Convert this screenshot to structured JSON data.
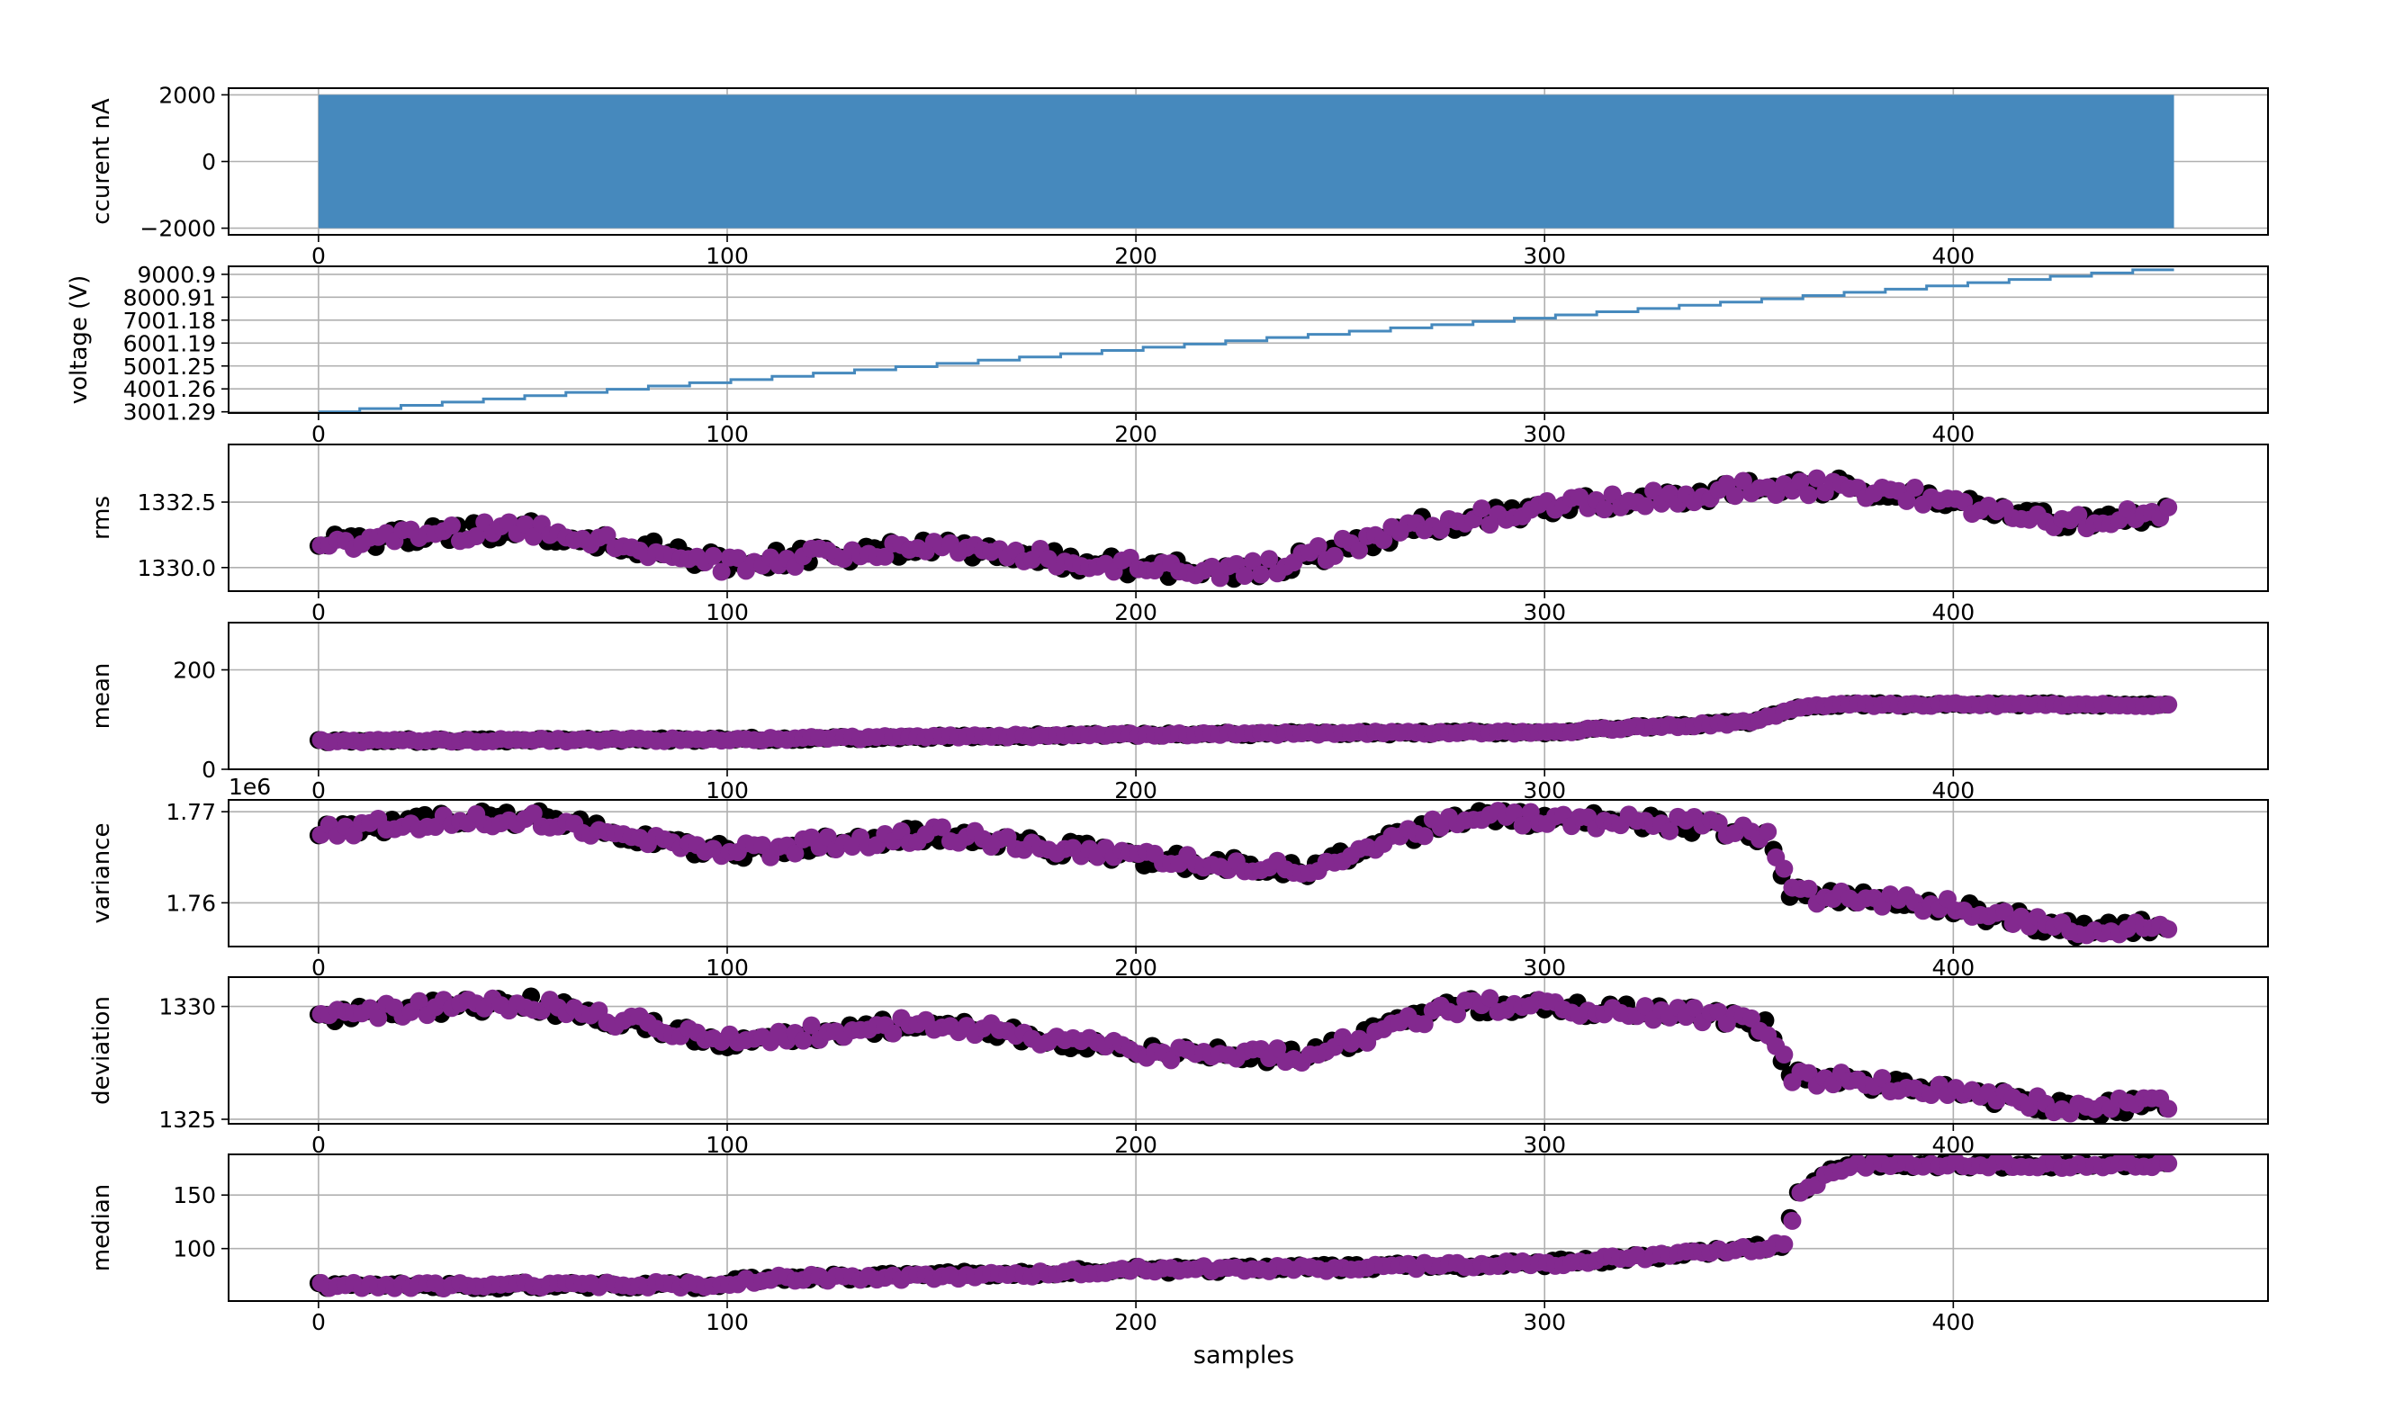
{
  "figure": {
    "xlabel": "samples",
    "x_ticks": [
      0,
      100,
      200,
      300,
      400
    ]
  },
  "chart_data": [
    {
      "type": "area",
      "ylabel": "ccurent nA",
      "xlim": [
        -22,
        477
      ],
      "ylim": [
        -2200,
        2200
      ],
      "y_ticks": [
        2000,
        0,
        -2000
      ],
      "y_tick_labels": [
        "2000",
        "0",
        "−2000"
      ],
      "grid": true,
      "color": "#4689bd",
      "description_values": {
        "x_range": [
          0,
          454
        ],
        "y_min": -2000,
        "y_max": 2000
      }
    },
    {
      "type": "line",
      "ylabel": "voltage (V)",
      "xlim": [
        -22,
        477
      ],
      "ylim": [
        2950,
        9350
      ],
      "y_ticks": [
        3001.29,
        4001.26,
        5001.25,
        6001.19,
        7001.18,
        8000.91,
        9000.9
      ],
      "y_tick_labels": [
        "3001.29",
        "4001.26",
        "5001.25",
        "6001.19",
        "7001.18",
        "8000.91",
        "9000.9"
      ],
      "grid": true,
      "color": "#4689bd",
      "x": [
        0,
        454
      ],
      "y": [
        3001.29,
        9200
      ]
    },
    {
      "type": "scatter",
      "ylabel": "rms",
      "xlim": [
        -22,
        477
      ],
      "ylim": [
        1329.1,
        1334.7
      ],
      "y_ticks": [
        1330.0,
        1332.5
      ],
      "y_tick_labels": [
        "1330.0",
        "1332.5"
      ],
      "grid": true,
      "x_range": [
        0,
        452
      ],
      "series": [
        {
          "color": "#000000",
          "keypoints": [
            [
              0,
              1330.9
            ],
            [
              50,
              1331.5
            ],
            [
              100,
              1330.2
            ],
            [
              150,
              1330.8
            ],
            [
              200,
              1330.0
            ],
            [
              230,
              1329.9
            ],
            [
              270,
              1331.6
            ],
            [
              300,
              1332.3
            ],
            [
              350,
              1333.0
            ],
            [
              370,
              1333.1
            ],
            [
              400,
              1332.5
            ],
            [
              430,
              1331.7
            ],
            [
              452,
              1332.1
            ]
          ],
          "noise": 0.35
        },
        {
          "color": "#83298f",
          "keypoints": [
            [
              0,
              1330.9
            ],
            [
              50,
              1331.5
            ],
            [
              100,
              1330.1
            ],
            [
              150,
              1330.8
            ],
            [
              200,
              1330.0
            ],
            [
              230,
              1329.9
            ],
            [
              270,
              1331.6
            ],
            [
              300,
              1332.3
            ],
            [
              350,
              1333.0
            ],
            [
              370,
              1333.1
            ],
            [
              400,
              1332.5
            ],
            [
              430,
              1331.7
            ],
            [
              452,
              1332.1
            ]
          ],
          "noise": 0.35
        }
      ]
    },
    {
      "type": "scatter",
      "ylabel": "mean",
      "xlim": [
        -22,
        477
      ],
      "ylim": [
        0,
        295
      ],
      "y_ticks": [
        0,
        200
      ],
      "y_tick_labels": [
        "0",
        "200"
      ],
      "grid": true,
      "x_range": [
        0,
        452
      ],
      "series": [
        {
          "color": "#000000",
          "keypoints": [
            [
              0,
              57
            ],
            [
              100,
              60
            ],
            [
              200,
              70
            ],
            [
              300,
              75
            ],
            [
              350,
              95
            ],
            [
              360,
              120
            ],
            [
              370,
              130
            ],
            [
              452,
              130
            ]
          ],
          "noise": 3
        },
        {
          "color": "#83298f",
          "keypoints": [
            [
              0,
              57
            ],
            [
              100,
              60
            ],
            [
              200,
              70
            ],
            [
              300,
              75
            ],
            [
              350,
              95
            ],
            [
              360,
              120
            ],
            [
              370,
              130
            ],
            [
              452,
              130
            ]
          ],
          "noise": 3
        }
      ]
    },
    {
      "type": "scatter",
      "ylabel": "variance",
      "multiplier": "1e6",
      "xlim": [
        -22,
        477
      ],
      "ylim": [
        1.7552,
        1.7713
      ],
      "y_ticks": [
        1.76,
        1.77
      ],
      "y_tick_labels": [
        "1.76",
        "1.77"
      ],
      "grid": true,
      "x_range": [
        0,
        452
      ],
      "series": [
        {
          "color": "#000000",
          "keypoints": [
            [
              0,
              1.768
            ],
            [
              50,
              1.7695
            ],
            [
              100,
              1.7655
            ],
            [
              150,
              1.7675
            ],
            [
              200,
              1.765
            ],
            [
              240,
              1.7635
            ],
            [
              280,
              1.7695
            ],
            [
              340,
              1.7685
            ],
            [
              355,
              1.767
            ],
            [
              360,
              1.761
            ],
            [
              400,
              1.7595
            ],
            [
              430,
              1.757
            ],
            [
              452,
              1.7575
            ]
          ],
          "noise": 0.0009
        },
        {
          "color": "#83298f",
          "keypoints": [
            [
              0,
              1.768
            ],
            [
              50,
              1.7695
            ],
            [
              100,
              1.7655
            ],
            [
              150,
              1.7675
            ],
            [
              200,
              1.765
            ],
            [
              240,
              1.7635
            ],
            [
              280,
              1.7695
            ],
            [
              340,
              1.7685
            ],
            [
              355,
              1.767
            ],
            [
              360,
              1.761
            ],
            [
              400,
              1.7595
            ],
            [
              430,
              1.757
            ],
            [
              452,
              1.7575
            ]
          ],
          "noise": 0.0009
        }
      ]
    },
    {
      "type": "scatter",
      "ylabel": "deviation",
      "xlim": [
        -22,
        477
      ],
      "ylim": [
        1324.8,
        1331.3
      ],
      "y_ticks": [
        1325,
        1330
      ],
      "y_tick_labels": [
        "1325",
        "1330"
      ],
      "grid": true,
      "x_range": [
        0,
        452
      ],
      "series": [
        {
          "color": "#000000",
          "keypoints": [
            [
              0,
              1329.6
            ],
            [
              50,
              1330.2
            ],
            [
              100,
              1328.5
            ],
            [
              150,
              1329.3
            ],
            [
              200,
              1328.0
            ],
            [
              240,
              1327.8
            ],
            [
              280,
              1330.1
            ],
            [
              340,
              1329.6
            ],
            [
              355,
              1329.0
            ],
            [
              360,
              1326.9
            ],
            [
              400,
              1326.3
            ],
            [
              430,
              1325.4
            ],
            [
              452,
              1325.8
            ]
          ],
          "noise": 0.35
        },
        {
          "color": "#83298f",
          "keypoints": [
            [
              0,
              1329.6
            ],
            [
              50,
              1330.2
            ],
            [
              100,
              1328.5
            ],
            [
              150,
              1329.3
            ],
            [
              200,
              1328.0
            ],
            [
              240,
              1327.8
            ],
            [
              280,
              1330.1
            ],
            [
              340,
              1329.6
            ],
            [
              355,
              1329.0
            ],
            [
              360,
              1326.9
            ],
            [
              400,
              1326.3
            ],
            [
              430,
              1325.4
            ],
            [
              452,
              1325.8
            ]
          ],
          "noise": 0.35
        }
      ]
    },
    {
      "type": "scatter",
      "ylabel": "median",
      "xlim": [
        -22,
        477
      ],
      "ylim": [
        51,
        188
      ],
      "y_ticks": [
        100,
        150
      ],
      "y_tick_labels": [
        "100",
        "150"
      ],
      "grid": true,
      "x_range": [
        0,
        452
      ],
      "series": [
        {
          "color": "#000000",
          "keypoints": [
            [
              0,
              65
            ],
            [
              95,
              66
            ],
            [
              110,
              72
            ],
            [
              150,
              76
            ],
            [
              200,
              80
            ],
            [
              250,
              82
            ],
            [
              300,
              86
            ],
            [
              340,
              96
            ],
            [
              358,
              103
            ],
            [
              362,
              150
            ],
            [
              370,
              174
            ],
            [
              380,
              179
            ],
            [
              452,
              178
            ]
          ],
          "noise": 3
        },
        {
          "color": "#83298f",
          "keypoints": [
            [
              0,
              65
            ],
            [
              95,
              66
            ],
            [
              110,
              72
            ],
            [
              150,
              74
            ],
            [
              200,
              80
            ],
            [
              250,
              82
            ],
            [
              300,
              86
            ],
            [
              340,
              96
            ],
            [
              358,
              103
            ],
            [
              362,
              150
            ],
            [
              370,
              174
            ],
            [
              380,
              179
            ],
            [
              452,
              178
            ]
          ],
          "noise": 3
        }
      ]
    }
  ]
}
